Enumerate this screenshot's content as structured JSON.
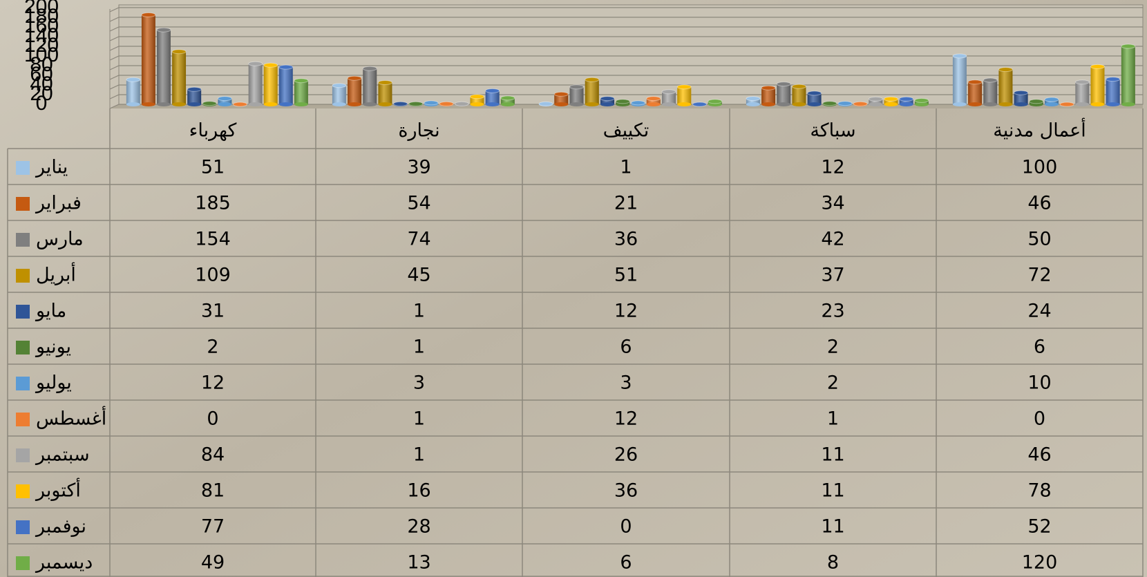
{
  "chart_data": {
    "type": "bar",
    "categories": [
      "كهرباء",
      "نجارة",
      "تكييف",
      "سباكة",
      "أعمال مدنية"
    ],
    "series": [
      {
        "name": "يناير",
        "color": "#9dc3e6",
        "values": [
          51,
          39,
          1,
          12,
          100
        ]
      },
      {
        "name": "فبراير",
        "color": "#c55a11",
        "values": [
          185,
          54,
          21,
          34,
          46
        ]
      },
      {
        "name": "مارس",
        "color": "#7f7f7f",
        "values": [
          154,
          74,
          36,
          42,
          50
        ]
      },
      {
        "name": "أبريل",
        "color": "#bf9000",
        "values": [
          109,
          45,
          51,
          37,
          72
        ]
      },
      {
        "name": "مايو",
        "color": "#2f5597",
        "values": [
          31,
          1,
          12,
          23,
          24
        ]
      },
      {
        "name": "يونيو",
        "color": "#548235",
        "values": [
          2,
          1,
          6,
          2,
          6
        ]
      },
      {
        "name": "يوليو",
        "color": "#5b9bd5",
        "values": [
          12,
          3,
          3,
          2,
          10
        ]
      },
      {
        "name": "أغسطس",
        "color": "#ed7d31",
        "values": [
          0,
          1,
          12,
          1,
          0
        ]
      },
      {
        "name": "سبتمبر",
        "color": "#a5a5a5",
        "values": [
          84,
          1,
          26,
          11,
          46
        ]
      },
      {
        "name": "أكتوبر",
        "color": "#ffc000",
        "values": [
          81,
          16,
          36,
          11,
          78
        ]
      },
      {
        "name": "نوفمبر",
        "color": "#4472c4",
        "values": [
          77,
          28,
          0,
          11,
          52
        ]
      },
      {
        "name": "ديسمبر",
        "color": "#70ad47",
        "values": [
          49,
          13,
          6,
          8,
          120
        ]
      }
    ],
    "ylim": [
      0,
      200
    ],
    "yticks": [
      0,
      20,
      40,
      60,
      80,
      100,
      120,
      140,
      160,
      180,
      200
    ],
    "grid": true
  }
}
